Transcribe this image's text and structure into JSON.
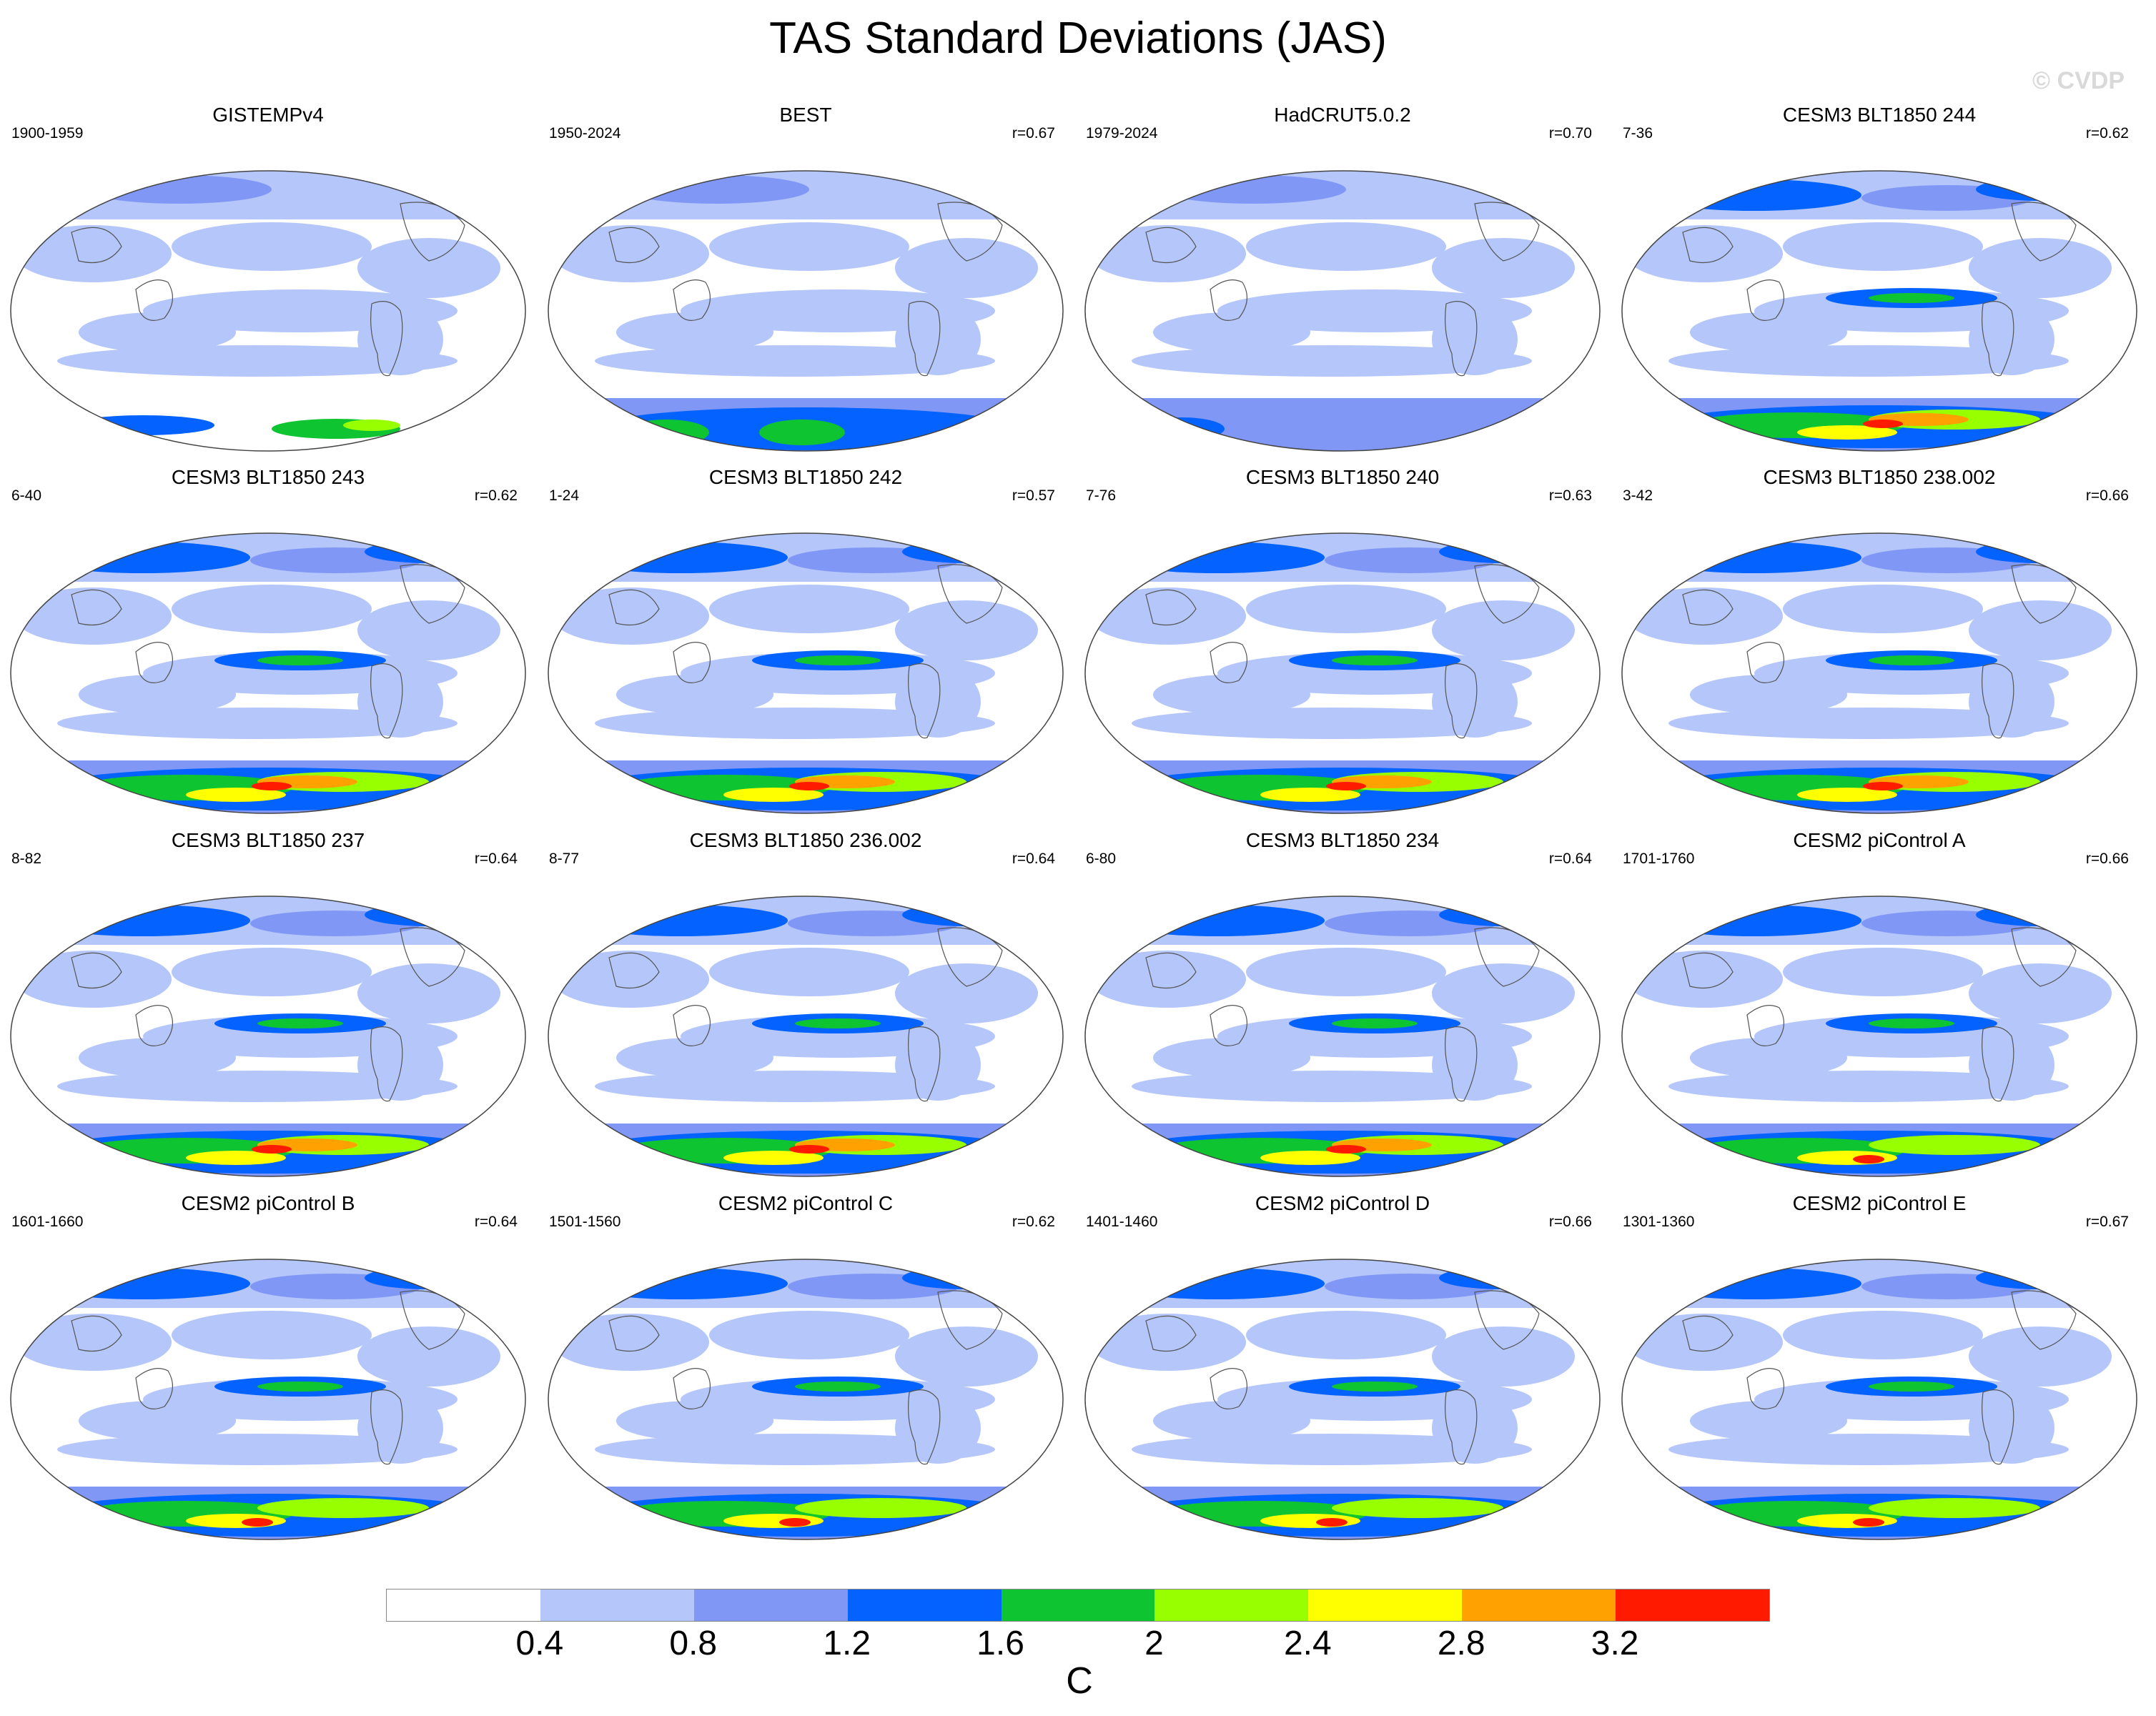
{
  "title": "TAS Standard Deviations (JAS)",
  "watermark": "© CVDP",
  "chart_data": {
    "type": "heatmap",
    "title": "TAS Standard Deviations (JAS)",
    "projection": "global map (Robinson-like), 4x4 panel grid",
    "colorbar": {
      "unit": "C",
      "levels": [
        0.4,
        0.8,
        1.2,
        1.6,
        2,
        2.4,
        2.8,
        3.2
      ],
      "tick_labels": [
        "0.4",
        "0.8",
        "1.2",
        "1.6",
        "2",
        "2.4",
        "2.8",
        "3.2"
      ],
      "colors": [
        "#ffffff",
        "#b4c6fa",
        "#8197f6",
        "#0463ff",
        "#0ec431",
        "#97ff00",
        "#ffff00",
        "#ffa100",
        "#ff1a00"
      ]
    },
    "panels": [
      {
        "title": "GISTEMPv4",
        "left": "1900-1959",
        "right": "",
        "antarctic": "obs_sparse"
      },
      {
        "title": "BEST",
        "left": "1950-2024",
        "right": "r=0.67",
        "antarctic": "obs"
      },
      {
        "title": "HadCRUT5.0.2",
        "left": "1979-2024",
        "right": "r=0.70",
        "antarctic": "obs_blue"
      },
      {
        "title": "CESM3 BLT1850 244",
        "left": "7-36",
        "right": "r=0.62",
        "antarctic": "model"
      },
      {
        "title": "CESM3 BLT1850 243",
        "left": "6-40",
        "right": "r=0.62",
        "antarctic": "model"
      },
      {
        "title": "CESM3 BLT1850 242",
        "left": "1-24",
        "right": "r=0.57",
        "antarctic": "model"
      },
      {
        "title": "CESM3 BLT1850 240",
        "left": "7-76",
        "right": "r=0.63",
        "antarctic": "model"
      },
      {
        "title": "CESM3 BLT1850 238.002",
        "left": "3-42",
        "right": "r=0.66",
        "antarctic": "model"
      },
      {
        "title": "CESM3 BLT1850 237",
        "left": "8-82",
        "right": "r=0.64",
        "antarctic": "model"
      },
      {
        "title": "CESM3 BLT1850 236.002",
        "left": "8-77",
        "right": "r=0.64",
        "antarctic": "model"
      },
      {
        "title": "CESM3 BLT1850 234",
        "left": "6-80",
        "right": "r=0.64",
        "antarctic": "model"
      },
      {
        "title": "CESM2 piControl A",
        "left": "1701-1760",
        "right": "r=0.66",
        "antarctic": "model_low"
      },
      {
        "title": "CESM2 piControl B",
        "left": "1601-1660",
        "right": "r=0.64",
        "antarctic": "model_low"
      },
      {
        "title": "CESM2 piControl C",
        "left": "1501-1560",
        "right": "r=0.62",
        "antarctic": "model_low"
      },
      {
        "title": "CESM2 piControl D",
        "left": "1401-1460",
        "right": "r=0.66",
        "antarctic": "model_low"
      },
      {
        "title": "CESM2 piControl E",
        "left": "1301-1360",
        "right": "r=0.67",
        "antarctic": "model_low"
      }
    ]
  }
}
